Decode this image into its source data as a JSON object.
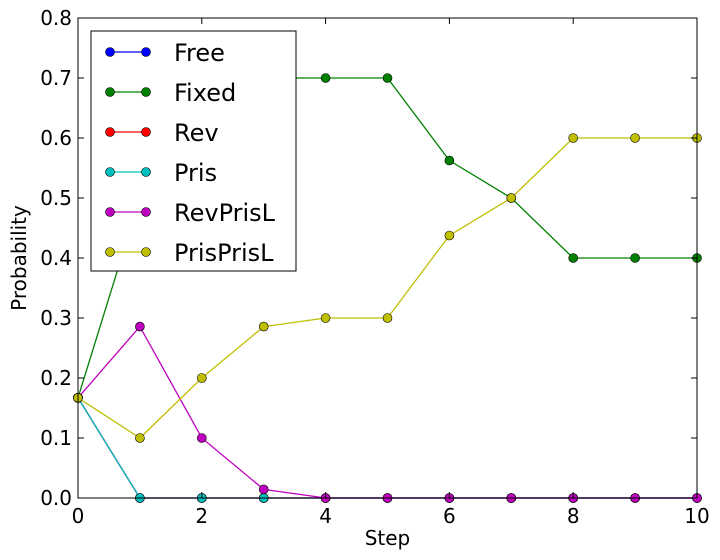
{
  "chart_data": {
    "type": "line",
    "xlabel": "Step",
    "ylabel": "Probability",
    "xlim": [
      0,
      10
    ],
    "ylim": [
      0,
      0.8
    ],
    "xticks": [
      0,
      2,
      4,
      6,
      8,
      10
    ],
    "yticks": [
      0.0,
      0.1,
      0.2,
      0.3,
      0.4,
      0.5,
      0.6,
      0.7,
      0.8
    ],
    "xtick_labels": [
      "0",
      "2",
      "4",
      "6",
      "8",
      "10"
    ],
    "ytick_labels": [
      "0.0",
      "0.1",
      "0.2",
      "0.3",
      "0.4",
      "0.5",
      "0.6",
      "0.7",
      "0.8"
    ],
    "grid": false,
    "legend_position": "top-left",
    "x": [
      0,
      1,
      2,
      3,
      4,
      5,
      6,
      7,
      8,
      9,
      10
    ],
    "series": [
      {
        "name": "Free",
        "color": "#0000ff",
        "values": [
          0.167,
          0,
          0,
          0,
          0,
          0,
          0,
          0,
          0,
          0,
          0
        ]
      },
      {
        "name": "Fixed",
        "color": "#008000",
        "values": [
          0.167,
          0.5,
          0.6,
          0.7,
          0.7,
          0.7,
          0.5625,
          0.5,
          0.4,
          0.4,
          0.4
        ]
      },
      {
        "name": "Rev",
        "color": "#ff0000",
        "values": [
          0.167,
          0,
          0,
          0,
          0,
          0,
          0,
          0,
          0,
          0,
          0
        ]
      },
      {
        "name": "Pris",
        "color": "#00bfbf",
        "values": [
          0.167,
          0,
          0,
          0,
          0,
          0,
          0,
          0,
          0,
          0,
          0
        ]
      },
      {
        "name": "RevPrisL",
        "color": "#bf00bf",
        "values": [
          0.167,
          0.2857,
          0.1,
          0.0143,
          0,
          0,
          0,
          0,
          0,
          0,
          0
        ]
      },
      {
        "name": "PrisPrisL",
        "color": "#bfbf00",
        "values": [
          0.167,
          0.1,
          0.2,
          0.2857,
          0.3,
          0.3,
          0.4375,
          0.5,
          0.6,
          0.6,
          0.6
        ]
      }
    ]
  }
}
